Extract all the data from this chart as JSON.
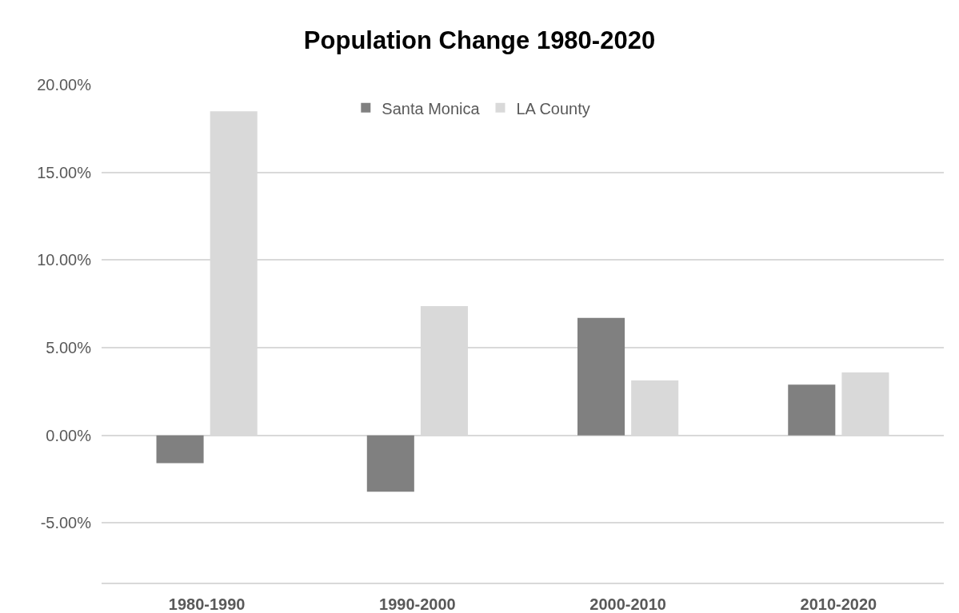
{
  "chart_data": {
    "type": "bar",
    "title": "Population Change 1980-2020",
    "categories": [
      "1980-1990",
      "1990-2000",
      "2000-2010",
      "2010-2020"
    ],
    "series": [
      {
        "name": "Santa Monica",
        "color": "#808080",
        "values": [
          -1.59,
          -3.22,
          6.7,
          2.89
        ]
      },
      {
        "name": "LA County",
        "color": "#d9d9d9",
        "values": [
          18.48,
          7.37,
          3.13,
          3.59
        ]
      }
    ],
    "ylim": [
      -8.4,
      20
    ],
    "yticks": [
      {
        "value": -5,
        "label": "-5.00%"
      },
      {
        "value": 0,
        "label": "0.00%"
      },
      {
        "value": 5,
        "label": "5.00%"
      },
      {
        "value": 10,
        "label": "10.00%"
      },
      {
        "value": 15,
        "label": "15.00%"
      },
      {
        "value": 20,
        "label": "20.00%"
      }
    ],
    "grid": "y",
    "legend": "top"
  }
}
